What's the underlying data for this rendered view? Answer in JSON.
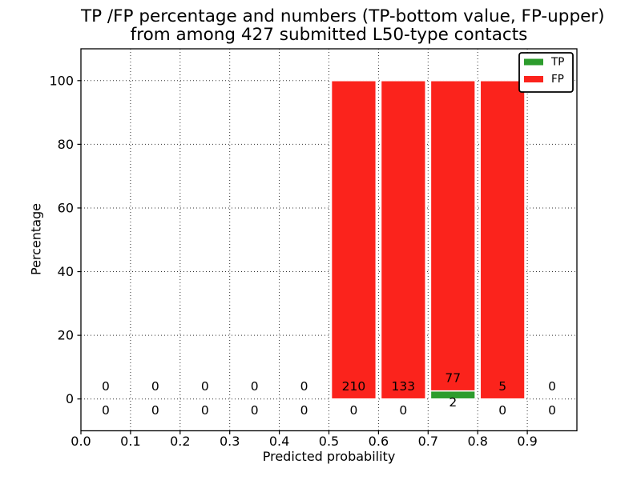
{
  "title": {
    "line1": "TP /FP percentage and numbers (TP-bottom value, FP-upper)",
    "line2": "from among 427 submitted L50-type contacts"
  },
  "axes": {
    "xlabel": "Predicted probability",
    "ylabel": "Percentage",
    "x_ticks": [
      {
        "label": "0.0",
        "value": 0.0
      },
      {
        "label": "0.1",
        "value": 0.1
      },
      {
        "label": "0.2",
        "value": 0.2
      },
      {
        "label": "0.3",
        "value": 0.3
      },
      {
        "label": "0.4",
        "value": 0.4
      },
      {
        "label": "0.5",
        "value": 0.5
      },
      {
        "label": "0.6",
        "value": 0.6
      },
      {
        "label": "0.7",
        "value": 0.7
      },
      {
        "label": "0.8",
        "value": 0.8
      },
      {
        "label": "0.9",
        "value": 0.9
      }
    ],
    "y_ticks": [
      {
        "label": "0",
        "value": 0
      },
      {
        "label": "20",
        "value": 20
      },
      {
        "label": "40",
        "value": 40
      },
      {
        "label": "60",
        "value": 60
      },
      {
        "label": "80",
        "value": 80
      },
      {
        "label": "100",
        "value": 100
      }
    ]
  },
  "legend": [
    {
      "label": "TP",
      "color": "#2d9c2d"
    },
    {
      "label": "FP",
      "color": "#fb231c"
    }
  ],
  "chart_data": {
    "type": "bar",
    "stacked": true,
    "title": "TP /FP percentage and numbers (TP-bottom value, FP-upper) from among 427 submitted L50-type contacts",
    "xlabel": "Predicted probability",
    "ylabel": "Percentage",
    "xlim": [
      0.0,
      1.0
    ],
    "ylim": [
      -10,
      110
    ],
    "grid": true,
    "grid_style": "dotted",
    "legend_position": "upper right",
    "total_contacts": 427,
    "bin_width": 0.1,
    "bar_width": 0.09,
    "bin_edges": [
      0.0,
      0.1,
      0.2,
      0.3,
      0.4,
      0.5,
      0.6,
      0.7,
      0.8,
      0.9,
      1.0
    ],
    "categories": [
      "0.0-0.1",
      "0.1-0.2",
      "0.2-0.3",
      "0.3-0.4",
      "0.4-0.5",
      "0.5-0.6",
      "0.6-0.7",
      "0.7-0.8",
      "0.8-0.9",
      "0.9-1.0"
    ],
    "series": [
      {
        "name": "TP",
        "color": "#2d9c2d",
        "counts": [
          0,
          0,
          0,
          0,
          0,
          0,
          0,
          2,
          0,
          0
        ],
        "percent": [
          0,
          0,
          0,
          0,
          0,
          0,
          0,
          2.53,
          0,
          0
        ]
      },
      {
        "name": "FP",
        "color": "#fb231c",
        "counts": [
          0,
          0,
          0,
          0,
          0,
          210,
          133,
          77,
          5,
          0
        ],
        "percent": [
          0,
          0,
          0,
          0,
          0,
          100,
          100,
          97.47,
          100,
          0
        ]
      }
    ]
  }
}
